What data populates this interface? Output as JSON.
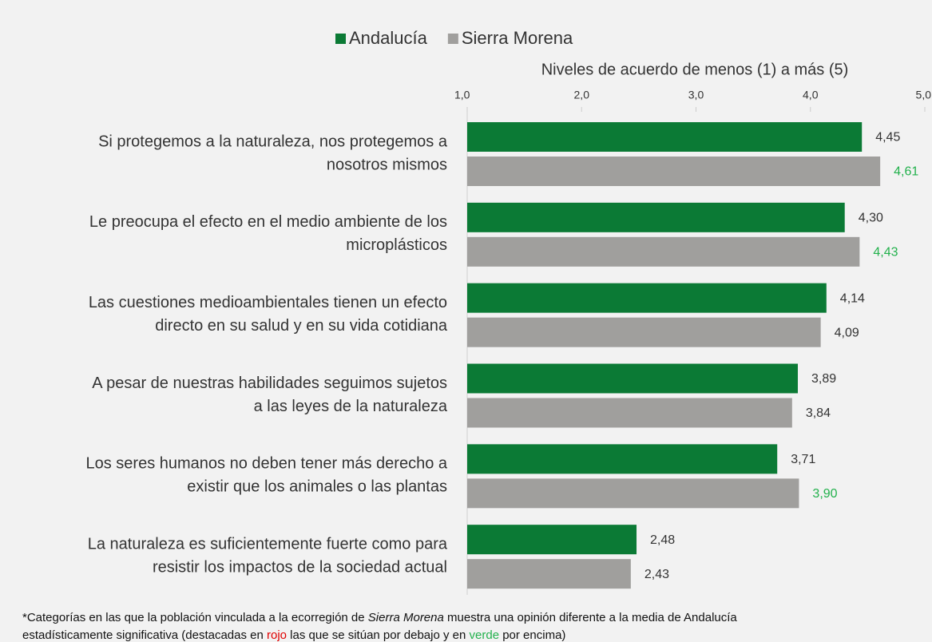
{
  "chart_data": {
    "type": "hbar",
    "axis_title": "Niveles de acuerdo de menos (1) a más (5)",
    "categories": [
      [
        "Si protegemos a la naturaleza, nos protegemos a",
        "nosotros mismos"
      ],
      [
        "Le preocupa el efecto en el medio ambiente de los",
        "microplásticos"
      ],
      [
        "Las cuestiones medioambientales tienen un efecto",
        "directo en su salud y en su vida cotidiana"
      ],
      [
        "A pesar de nuestras habilidades seguimos sujetos",
        "a las leyes de la naturaleza"
      ],
      [
        "Los seres humanos no deben tener más derecho a",
        "existir que los animales o las plantas"
      ],
      [
        "La naturaleza es suficientemente fuerte como para",
        "resistir los impactos de la sociedad actual"
      ]
    ],
    "series": [
      {
        "name": "Andalucía",
        "color": "#0b7a35",
        "values": [
          4.45,
          4.3,
          4.14,
          3.89,
          3.71,
          2.48
        ],
        "value_labels": [
          "4,45",
          "4,30",
          "4,14",
          "3,89",
          "3,71",
          "2,48"
        ],
        "value_label_colors": [
          "#333333",
          "#333333",
          "#333333",
          "#333333",
          "#333333",
          "#333333"
        ]
      },
      {
        "name": "Sierra Morena",
        "color": "#a09f9d",
        "values": [
          4.61,
          4.43,
          4.09,
          3.84,
          3.9,
          2.43
        ],
        "value_labels": [
          "4,61",
          "4,43",
          "4,09",
          "3,84",
          "3,90",
          "2,43"
        ],
        "value_label_colors": [
          "#22b14c",
          "#22b14c",
          "#333333",
          "#333333",
          "#22b14c",
          "#333333"
        ]
      }
    ],
    "xlim": [
      1,
      5
    ],
    "xticks": [
      {
        "value": 1,
        "label": "1,0"
      },
      {
        "value": 2,
        "label": "2,0"
      },
      {
        "value": 3,
        "label": "3,0"
      },
      {
        "value": 4,
        "label": "4,0"
      },
      {
        "value": 5,
        "label": "5,0"
      }
    ],
    "footnote": [
      [
        {
          "text": "*Categorías en las que la población vinculada a la ecorregión de "
        },
        {
          "text": "Sierra Morena",
          "style": "italic"
        },
        {
          "text": " muestra una opinión diferente a la media de Andalucía"
        }
      ],
      [
        {
          "text": "estadísticamente significativa (destacadas en "
        },
        {
          "text": "rojo",
          "color": "#e00000"
        },
        {
          "text": " las que se sitúan por debajo y en "
        },
        {
          "text": "verde",
          "color": "#22b14c"
        },
        {
          "text": " por encima)"
        }
      ]
    ]
  }
}
